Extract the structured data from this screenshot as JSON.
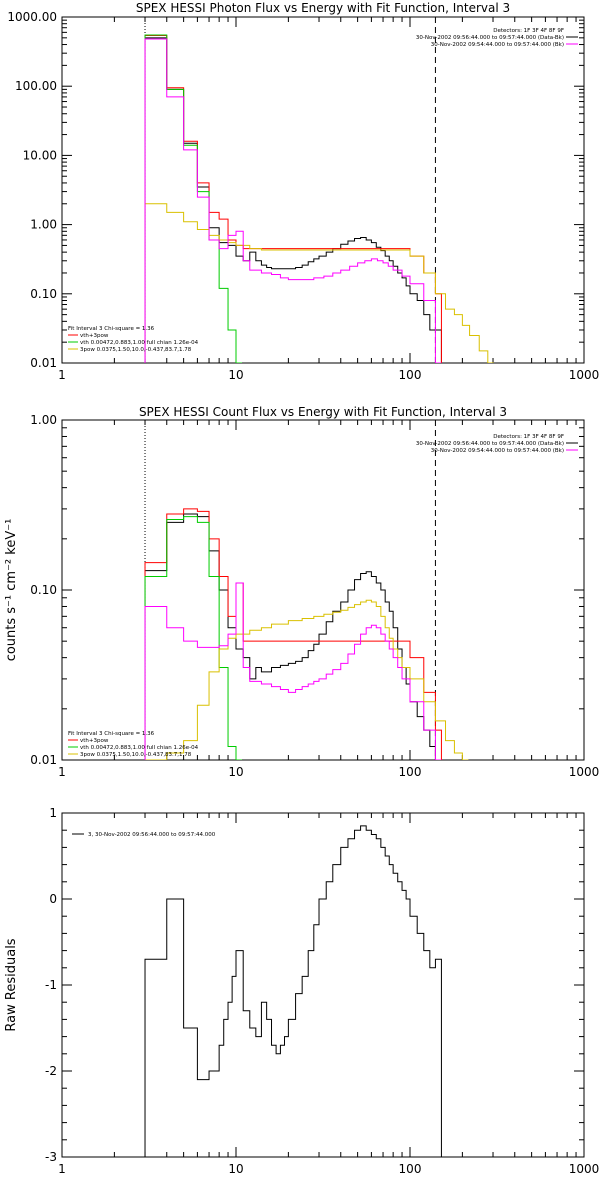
{
  "colors": {
    "black": "#000000",
    "red": "#ff0000",
    "green": "#00cc00",
    "yellow": "#d9c000",
    "magenta": "#ff00ff"
  },
  "chart_data": [
    {
      "type": "line",
      "title": "SPEX HESSI Photon Flux vs Energy with Fit Function, Interval 3",
      "xscale": "log",
      "yscale": "log",
      "xlim": [
        1,
        1000
      ],
      "ylim": [
        0.01,
        1000
      ],
      "xticks": [
        "1",
        "10",
        "100",
        "1000"
      ],
      "yticks": [
        "0.01",
        "0.10",
        "1.00",
        "10.00",
        "100.00",
        "1000.00"
      ],
      "ylabel": "",
      "vlines": [
        {
          "x": 3,
          "style": "dotted"
        },
        {
          "x": 140,
          "style": "dashed"
        }
      ],
      "header": [
        "Detectors: 1F 3F 4F 8F 9F",
        "30-Nov-2002 09:56:44.000 to 09:57:44.000 (Data-Bk)",
        "30-Nov-2002 09:54:44.000 to 09:57:44.000 (Bk)"
      ],
      "legend_text": [
        "Fit Interval 3    Chi-square = 1.36",
        "vth+3pow",
        "vth 0.00472,0.883,1.00   full chian 1.26e-04",
        "3pow 0.0375,1.50,10.0,-0.437,83.7,1.78"
      ],
      "series": [
        {
          "name": "Data-Bk",
          "color": "#000000",
          "x": [
            3,
            3.5,
            4,
            4.5,
            5,
            5.5,
            6,
            6.5,
            7,
            7.5,
            8,
            8.5,
            9,
            9.5,
            10,
            11,
            12,
            13,
            14,
            15,
            16,
            18,
            20,
            22,
            24,
            26,
            28,
            30,
            33,
            36,
            40,
            44,
            48,
            52,
            56,
            60,
            64,
            68,
            72,
            76,
            80,
            85,
            90,
            95,
            100,
            110,
            120,
            130,
            140
          ],
          "y": [
            500,
            500,
            90,
            90,
            15,
            15,
            3.5,
            3.5,
            0.9,
            0.9,
            0.55,
            0.55,
            0.5,
            0.5,
            0.35,
            0.3,
            0.4,
            0.3,
            0.26,
            0.24,
            0.23,
            0.23,
            0.23,
            0.24,
            0.26,
            0.29,
            0.32,
            0.35,
            0.4,
            0.45,
            0.52,
            0.58,
            0.63,
            0.65,
            0.6,
            0.55,
            0.47,
            0.42,
            0.35,
            0.3,
            0.25,
            0.2,
            0.17,
            0.13,
            0.1,
            0.08,
            0.05,
            0.03,
            0.03
          ]
        },
        {
          "name": "vth+3pow",
          "color": "#ff0000",
          "x": [
            3,
            3.5,
            4,
            4.5,
            5,
            5.5,
            6,
            6.5,
            7,
            7.5,
            8,
            8.5,
            9,
            9.5,
            10,
            11,
            12,
            14,
            16,
            20,
            30,
            40,
            50,
            60,
            70,
            80,
            90,
            100,
            120,
            140
          ],
          "y": [
            540,
            540,
            95,
            95,
            16,
            16,
            4,
            4,
            1.5,
            1.5,
            1.2,
            1.2,
            0.6,
            0.6,
            0.5,
            0.45,
            0.45,
            0.45,
            0.45,
            0.45,
            0.45,
            0.45,
            0.45,
            0.45,
            0.45,
            0.45,
            0.45,
            0.35,
            0.2,
            0.1
          ]
        },
        {
          "name": "vth",
          "color": "#00cc00",
          "x": [
            3,
            3.5,
            4,
            4.5,
            5,
            5.5,
            6,
            6.5,
            7,
            7.5,
            8,
            8.5,
            9,
            9.5,
            10
          ],
          "y": [
            550,
            550,
            90,
            90,
            14,
            14,
            3,
            3,
            0.6,
            0.6,
            0.12,
            0.12,
            0.03,
            0.03,
            0.01
          ]
        },
        {
          "name": "3pow",
          "color": "#d9c000",
          "x": [
            3,
            4,
            5,
            6,
            7,
            8,
            9,
            10,
            12,
            14,
            20,
            30,
            40,
            50,
            60,
            70,
            80,
            90,
            100,
            120,
            140,
            160,
            180,
            200,
            220,
            250,
            280
          ],
          "y": [
            2,
            1.5,
            1.1,
            0.85,
            0.7,
            0.6,
            0.55,
            0.5,
            0.45,
            0.43,
            0.43,
            0.43,
            0.43,
            0.43,
            0.43,
            0.43,
            0.43,
            0.43,
            0.35,
            0.2,
            0.1,
            0.06,
            0.05,
            0.035,
            0.025,
            0.015,
            0.01
          ]
        },
        {
          "name": "Bk",
          "color": "#ff00ff",
          "x": [
            3,
            3.5,
            4,
            4.5,
            5,
            5.5,
            6,
            6.5,
            7,
            7.5,
            8,
            8.5,
            9,
            9.5,
            10,
            11,
            12,
            14,
            16,
            18,
            20,
            24,
            28,
            32,
            36,
            40,
            45,
            50,
            55,
            60,
            65,
            70,
            75,
            80,
            90,
            100,
            120,
            140
          ],
          "y": [
            480,
            480,
            70,
            70,
            12,
            12,
            2.5,
            2.5,
            0.6,
            0.6,
            0.45,
            0.45,
            0.7,
            0.7,
            0.8,
            0.3,
            0.22,
            0.2,
            0.19,
            0.17,
            0.16,
            0.16,
            0.17,
            0.18,
            0.2,
            0.22,
            0.25,
            0.28,
            0.3,
            0.32,
            0.3,
            0.28,
            0.25,
            0.22,
            0.18,
            0.14,
            0.08,
            0.01
          ]
        }
      ]
    },
    {
      "type": "line",
      "title": "SPEX HESSI Count Flux vs Energy with Fit Function, Interval 3",
      "xscale": "log",
      "yscale": "log",
      "xlim": [
        1,
        1000
      ],
      "ylim": [
        0.01,
        1
      ],
      "xticks": [
        "1",
        "10",
        "100",
        "1000"
      ],
      "yticks": [
        "0.01",
        "0.10",
        "1.00"
      ],
      "ylabel": "counts s⁻¹ cm⁻² keV⁻¹",
      "vlines": [
        {
          "x": 3,
          "style": "dotted"
        },
        {
          "x": 140,
          "style": "dashed"
        }
      ],
      "header": [
        "Detectors: 1F 3F 4F 8F 9F",
        "30-Nov-2002 09:56:44.000 to 09:57:44.000 (Data-Bk)",
        "30-Nov-2002 09:54:44.000 to 09:57:44.000 (Bk)"
      ],
      "legend_text": [
        "Fit Interval 3    Chi-square = 1.36",
        "vth+3pow",
        "vth 0.00472,0.883,1.00   full chian 1.26e-04",
        "3pow 0.0375,1.50,10.0,-0.437,83.7,1.78"
      ],
      "series": [
        {
          "name": "Data-Bk",
          "color": "#000000",
          "x": [
            3,
            4,
            5,
            6,
            7,
            8,
            9,
            10,
            11,
            12,
            13,
            14,
            16,
            18,
            20,
            22,
            24,
            26,
            28,
            30,
            33,
            36,
            40,
            44,
            48,
            52,
            56,
            60,
            64,
            68,
            72,
            76,
            80,
            85,
            90,
            95,
            100,
            110,
            120,
            130,
            140
          ],
          "y": [
            0.13,
            0.25,
            0.28,
            0.27,
            0.17,
            0.1,
            0.06,
            0.045,
            0.04,
            0.03,
            0.035,
            0.033,
            0.035,
            0.036,
            0.037,
            0.038,
            0.04,
            0.044,
            0.048,
            0.055,
            0.065,
            0.075,
            0.085,
            0.1,
            0.115,
            0.125,
            0.128,
            0.12,
            0.11,
            0.1,
            0.085,
            0.075,
            0.06,
            0.045,
            0.035,
            0.028,
            0.022,
            0.018,
            0.015,
            0.012,
            0.01
          ]
        },
        {
          "name": "vth+3pow",
          "color": "#ff0000",
          "x": [
            3,
            4,
            5,
            6,
            7,
            8,
            9,
            10,
            11,
            12,
            14,
            20,
            30,
            40,
            50,
            60,
            70,
            80,
            90,
            100,
            120,
            140
          ],
          "y": [
            0.145,
            0.28,
            0.3,
            0.29,
            0.2,
            0.12,
            0.07,
            0.11,
            0.05,
            0.05,
            0.05,
            0.05,
            0.05,
            0.05,
            0.05,
            0.05,
            0.05,
            0.05,
            0.05,
            0.04,
            0.025,
            0.015
          ]
        },
        {
          "name": "vth",
          "color": "#00cc00",
          "x": [
            3,
            4,
            5,
            6,
            7,
            8,
            9,
            10
          ],
          "y": [
            0.12,
            0.26,
            0.27,
            0.25,
            0.12,
            0.035,
            0.012,
            0.01
          ]
        },
        {
          "name": "3pow",
          "color": "#d9c000",
          "x": [
            3,
            4,
            5,
            6,
            7,
            8,
            9,
            10,
            12,
            14,
            16,
            20,
            24,
            28,
            32,
            36,
            40,
            44,
            48,
            52,
            56,
            60,
            64,
            68,
            72,
            76,
            80,
            85,
            90,
            100,
            120,
            140,
            160,
            180,
            200
          ],
          "y": [
            0.01,
            0.011,
            0.013,
            0.021,
            0.033,
            0.045,
            0.052,
            0.055,
            0.058,
            0.06,
            0.063,
            0.066,
            0.068,
            0.07,
            0.072,
            0.074,
            0.076,
            0.079,
            0.082,
            0.085,
            0.087,
            0.085,
            0.08,
            0.07,
            0.06,
            0.052,
            0.045,
            0.04,
            0.035,
            0.03,
            0.022,
            0.017,
            0.013,
            0.011,
            0.01
          ]
        },
        {
          "name": "Bk",
          "color": "#ff00ff",
          "x": [
            3,
            4,
            5,
            6,
            7,
            8,
            9,
            10,
            11,
            12,
            14,
            16,
            18,
            20,
            22,
            24,
            26,
            28,
            30,
            33,
            36,
            40,
            44,
            48,
            52,
            56,
            60,
            64,
            68,
            72,
            76,
            80,
            85,
            90,
            100,
            120,
            140
          ],
          "y": [
            0.08,
            0.06,
            0.05,
            0.046,
            0.046,
            0.047,
            0.055,
            0.11,
            0.035,
            0.029,
            0.028,
            0.027,
            0.026,
            0.025,
            0.026,
            0.027,
            0.028,
            0.029,
            0.03,
            0.032,
            0.034,
            0.037,
            0.042,
            0.048,
            0.055,
            0.06,
            0.062,
            0.06,
            0.055,
            0.05,
            0.045,
            0.04,
            0.035,
            0.03,
            0.022,
            0.015,
            0.01
          ]
        }
      ]
    },
    {
      "type": "line",
      "title": "",
      "xscale": "log",
      "yscale": "linear",
      "xlim": [
        1,
        1000
      ],
      "ylim": [
        -3,
        1
      ],
      "xticks": [
        "1",
        "10",
        "100",
        "1000"
      ],
      "yticks": [
        "-3",
        "-2",
        "-1",
        "0",
        "1"
      ],
      "ylabel": "Raw Residuals",
      "legend_text": [
        "3, 30-Nov-2002 09:56:44.000 to 09:57:44.000"
      ],
      "series": [
        {
          "name": "3, 30-Nov-2002 09:56:44.000 to 09:57:44.000",
          "color": "#000000",
          "x": [
            3,
            4,
            5,
            6,
            7,
            8,
            8.5,
            9,
            9.5,
            10,
            11,
            12,
            13,
            14,
            15,
            16,
            17,
            18,
            19,
            20,
            22,
            24,
            26,
            28,
            30,
            33,
            36,
            40,
            44,
            48,
            52,
            56,
            60,
            64,
            68,
            72,
            76,
            80,
            85,
            90,
            95,
            100,
            110,
            120,
            130,
            140
          ],
          "y": [
            -0.7,
            0.0,
            -1.5,
            -2.1,
            -2.0,
            -1.7,
            -1.4,
            -1.2,
            -0.9,
            -0.6,
            -1.3,
            -1.5,
            -1.6,
            -1.2,
            -1.4,
            -1.7,
            -1.8,
            -1.7,
            -1.6,
            -1.4,
            -1.1,
            -0.9,
            -0.6,
            -0.3,
            0.0,
            0.2,
            0.4,
            0.6,
            0.7,
            0.8,
            0.85,
            0.8,
            0.75,
            0.7,
            0.6,
            0.5,
            0.4,
            0.3,
            0.2,
            0.1,
            0.0,
            -0.2,
            -0.4,
            -0.6,
            -0.8,
            -0.7
          ]
        }
      ]
    }
  ]
}
